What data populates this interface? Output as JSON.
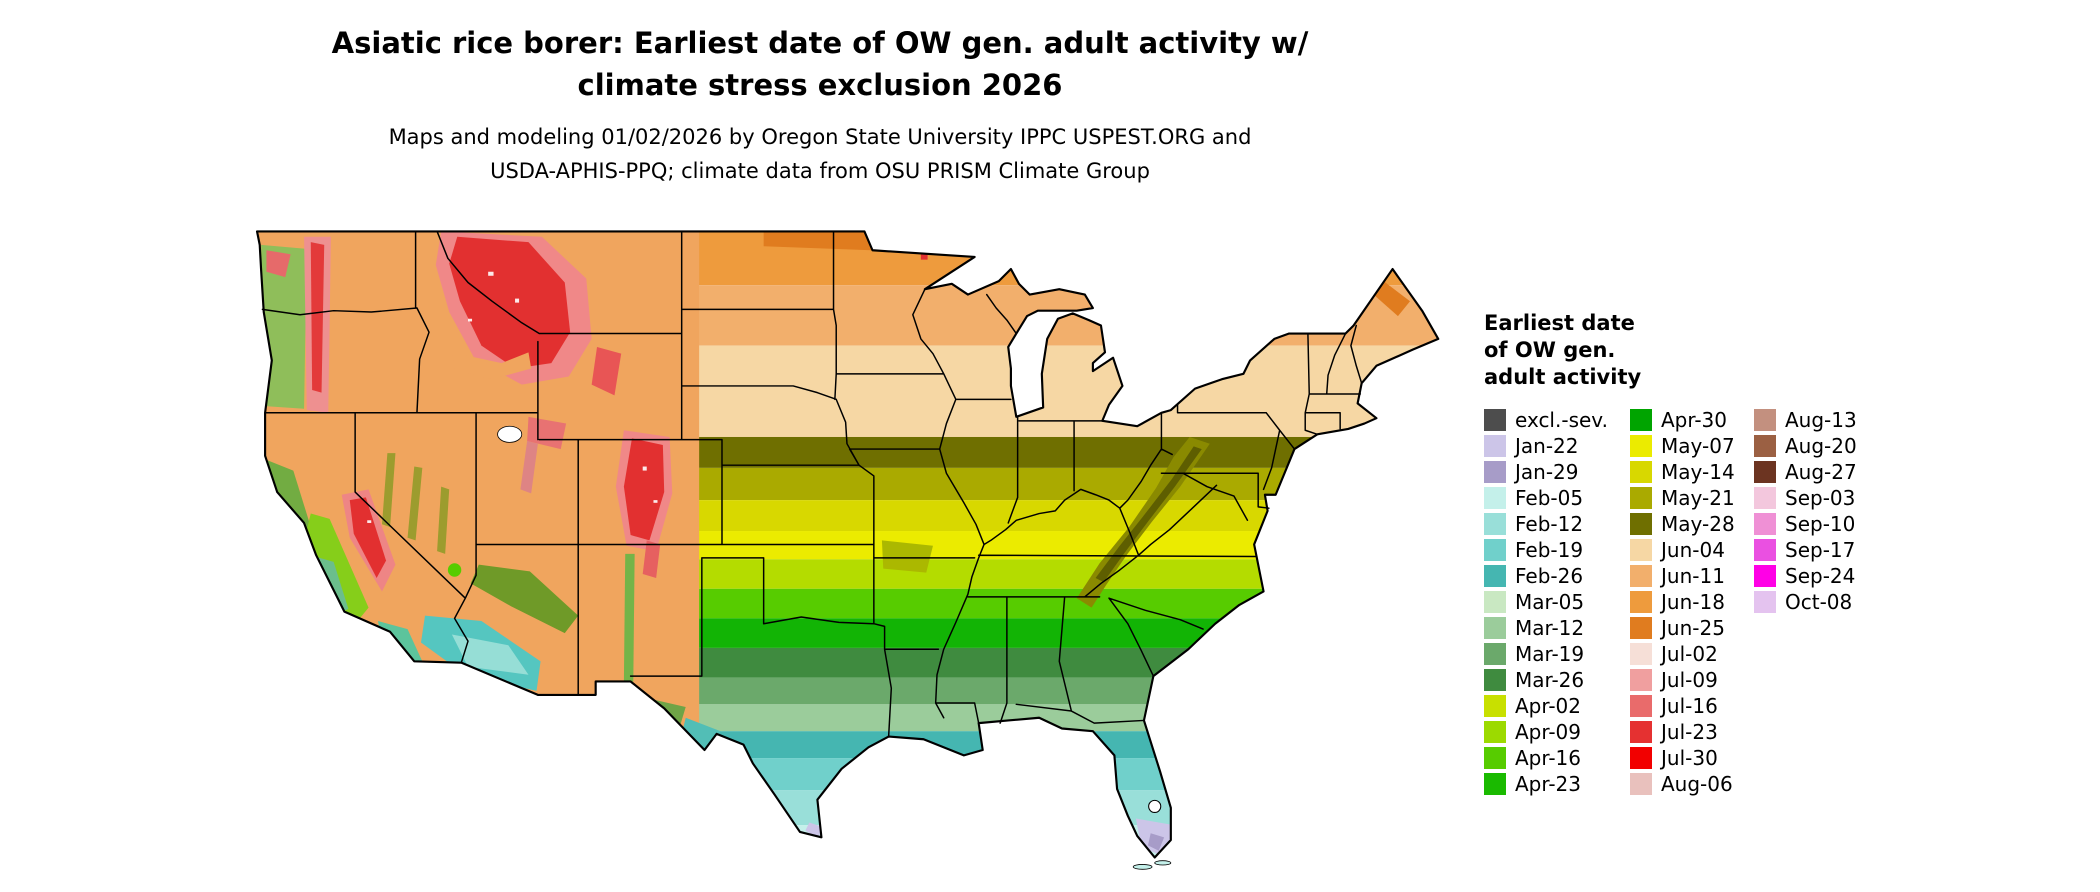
{
  "header": {
    "title_line1": "Asiatic rice borer: Earliest date of OW gen. adult activity w/",
    "title_line2": "climate stress exclusion 2026",
    "subtitle_line1": "Maps and modeling 01/02/2026 by Oregon State University IPPC USPEST.ORG and",
    "subtitle_line2": "USDA-APHIS-PPQ; climate data from OSU PRISM Climate Group"
  },
  "legend": {
    "title_lines": [
      "Earliest date",
      "of OW gen.",
      "adult activity"
    ],
    "columns": [
      [
        {
          "label": "excl.-sev.",
          "color": "#4D4D4D"
        },
        {
          "label": "Jan-22",
          "color": "#CCC5E8"
        },
        {
          "label": "Jan-29",
          "color": "#A79CC8"
        },
        {
          "label": "Feb-05",
          "color": "#C4F0EA"
        },
        {
          "label": "Feb-12",
          "color": "#99DFD9"
        },
        {
          "label": "Feb-19",
          "color": "#70D0CB"
        },
        {
          "label": "Feb-26",
          "color": "#45B6B1"
        },
        {
          "label": "Mar-05",
          "color": "#C9E8C2"
        },
        {
          "label": "Mar-12",
          "color": "#9BCC9B"
        },
        {
          "label": "Mar-19",
          "color": "#6BA96B"
        },
        {
          "label": "Mar-26",
          "color": "#3F8B3F"
        },
        {
          "label": "Apr-02",
          "color": "#C8E000"
        },
        {
          "label": "Apr-09",
          "color": "#9CDA00"
        },
        {
          "label": "Apr-16",
          "color": "#57CC00"
        },
        {
          "label": "Apr-23",
          "color": "#1ABA00"
        }
      ],
      [
        {
          "label": "Apr-30",
          "color": "#00A400"
        },
        {
          "label": "May-07",
          "color": "#EBEB00"
        },
        {
          "label": "May-14",
          "color": "#D8D800"
        },
        {
          "label": "May-21",
          "color": "#AAAA00"
        },
        {
          "label": "May-28",
          "color": "#6F6F00"
        },
        {
          "label": "Jun-04",
          "color": "#F6D7A4"
        },
        {
          "label": "Jun-11",
          "color": "#F2AF6C"
        },
        {
          "label": "Jun-18",
          "color": "#EE9B3D"
        },
        {
          "label": "Jun-25",
          "color": "#E07C1F"
        },
        {
          "label": "Jul-02",
          "color": "#F6DFD7"
        },
        {
          "label": "Jul-09",
          "color": "#F09F9F"
        },
        {
          "label": "Jul-16",
          "color": "#E96B6B"
        },
        {
          "label": "Jul-23",
          "color": "#E53131"
        },
        {
          "label": "Jul-30",
          "color": "#F20000"
        },
        {
          "label": "Aug-06",
          "color": "#E9C1BD"
        }
      ],
      [
        {
          "label": "Aug-13",
          "color": "#C3907F"
        },
        {
          "label": "Aug-20",
          "color": "#9B6043"
        },
        {
          "label": "Aug-27",
          "color": "#6C3421"
        },
        {
          "label": "Sep-03",
          "color": "#F3C7DD"
        },
        {
          "label": "Sep-10",
          "color": "#EF90D5"
        },
        {
          "label": "Sep-17",
          "color": "#EA50E1"
        },
        {
          "label": "Sep-24",
          "color": "#FF00E6"
        },
        {
          "label": "Oct-08",
          "color": "#E4C3EF"
        }
      ]
    ]
  }
}
